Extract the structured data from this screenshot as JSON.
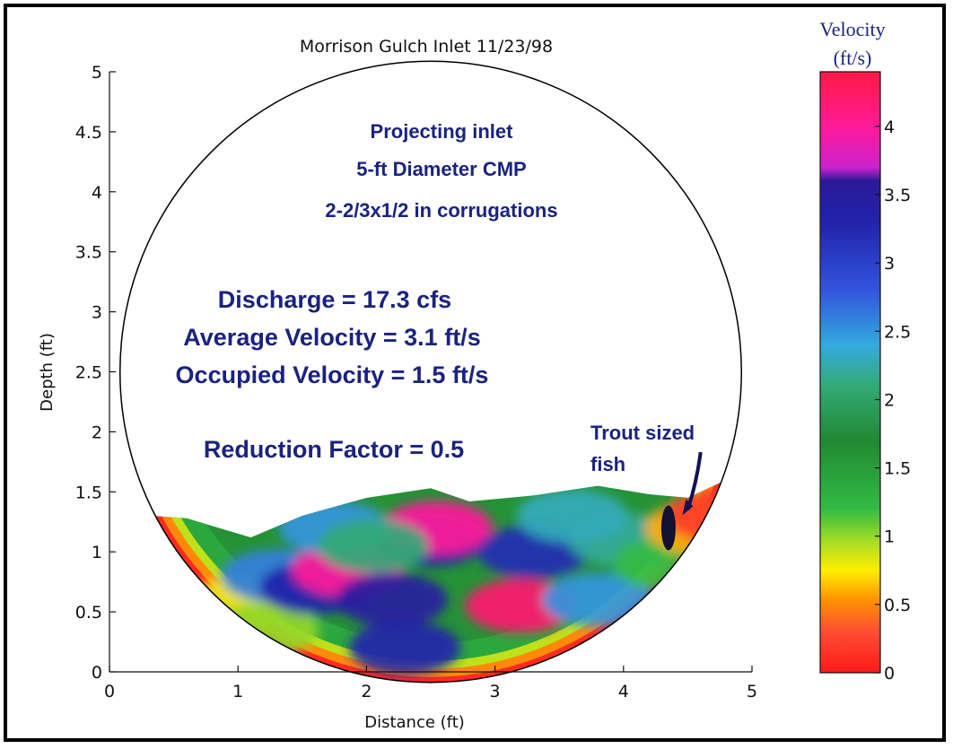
{
  "chart_data": {
    "type": "heatmap",
    "title": "Morrison Gulch Inlet 11/23/98",
    "xlabel": "Distance (ft)",
    "ylabel": "Depth (ft)",
    "xlim": [
      0,
      5
    ],
    "ylim": [
      0,
      5
    ],
    "x_ticks": [
      "0",
      "1",
      "2",
      "3",
      "4",
      "5"
    ],
    "y_ticks": [
      "0",
      "0.5",
      "1",
      "1.5",
      "2",
      "2.5",
      "3",
      "3.5",
      "4",
      "4.5",
      "5"
    ],
    "culvert": {
      "shape": "circle",
      "diameter_ft": 5,
      "center_x_ft": 2.5,
      "center_y_ft": 2.5
    },
    "water_surface": {
      "x": [
        0.33,
        0.6,
        1.1,
        1.5,
        2.0,
        2.5,
        2.8,
        3.3,
        3.8,
        4.2,
        4.5,
        4.8
      ],
      "depth": [
        1.3,
        1.28,
        1.12,
        1.3,
        1.45,
        1.53,
        1.42,
        1.47,
        1.55,
        1.48,
        1.45,
        1.6
      ]
    },
    "velocity_patches": [
      {
        "x": 0.95,
        "y": 0.55,
        "v": 0.8
      },
      {
        "x": 1.2,
        "y": 0.35,
        "v": 1.0
      },
      {
        "x": 1.3,
        "y": 0.8,
        "v": 2.6
      },
      {
        "x": 1.6,
        "y": 0.7,
        "v": 3.3
      },
      {
        "x": 1.85,
        "y": 0.85,
        "v": 4.0
      },
      {
        "x": 2.2,
        "y": 0.6,
        "v": 3.5
      },
      {
        "x": 2.5,
        "y": 1.1,
        "v": 3.3
      },
      {
        "x": 2.55,
        "y": 1.2,
        "v": 4.0
      },
      {
        "x": 2.3,
        "y": 0.2,
        "v": 3.3
      },
      {
        "x": 3.2,
        "y": 0.55,
        "v": 4.2
      },
      {
        "x": 3.3,
        "y": 1.0,
        "v": 3.2
      },
      {
        "x": 3.8,
        "y": 0.6,
        "v": 2.5
      },
      {
        "x": 4.0,
        "y": 1.1,
        "v": 2.2
      },
      {
        "x": 3.6,
        "y": 1.3,
        "v": 2.3
      },
      {
        "x": 1.75,
        "y": 1.2,
        "v": 2.5
      },
      {
        "x": 2.05,
        "y": 1.05,
        "v": 2.1
      },
      {
        "x": 4.35,
        "y": 0.9,
        "v": 1.2
      },
      {
        "x": 4.6,
        "y": 1.2,
        "v": 0.6
      },
      {
        "x": 4.75,
        "y": 1.3,
        "v": 0.2
      }
    ],
    "annotations": [
      "Projecting inlet",
      "5-ft Diameter CMP",
      "2-2/3x1/2 in corrugations",
      "Discharge = 17.3 cfs",
      "Average Velocity = 3.1 ft/s",
      "Occupied Velocity = 1.5 ft/s",
      "Reduction Factor = 0.5",
      "Trout sized",
      "fish"
    ],
    "fish_marker": {
      "x": 4.35,
      "y": 1.2,
      "target_x": 4.5,
      "target_y": 1.35
    },
    "colorbar": {
      "title_line1": "Velocity",
      "title_line2": "(ft/s)",
      "vmin": 0,
      "vmax": 4.4,
      "ticks": [
        "0",
        "0.5",
        "1",
        "1.5",
        "2",
        "2.5",
        "3",
        "3.5",
        "4"
      ],
      "colors": [
        {
          "v": 0.0,
          "c": "#ff1a1a"
        },
        {
          "v": 0.3,
          "c": "#ff4d33"
        },
        {
          "v": 0.55,
          "c": "#ff9900"
        },
        {
          "v": 0.75,
          "c": "#ffee00"
        },
        {
          "v": 0.95,
          "c": "#aadd22"
        },
        {
          "v": 1.2,
          "c": "#33bb44"
        },
        {
          "v": 1.7,
          "c": "#228833"
        },
        {
          "v": 2.1,
          "c": "#33aa77"
        },
        {
          "v": 2.4,
          "c": "#33aadd"
        },
        {
          "v": 2.8,
          "c": "#3355dd"
        },
        {
          "v": 3.3,
          "c": "#2222aa"
        },
        {
          "v": 3.6,
          "c": "#2a1a99"
        },
        {
          "v": 3.7,
          "c": "#cc22cc"
        },
        {
          "v": 4.0,
          "c": "#ff1a99"
        },
        {
          "v": 4.4,
          "c": "#ff1a44"
        }
      ]
    }
  }
}
